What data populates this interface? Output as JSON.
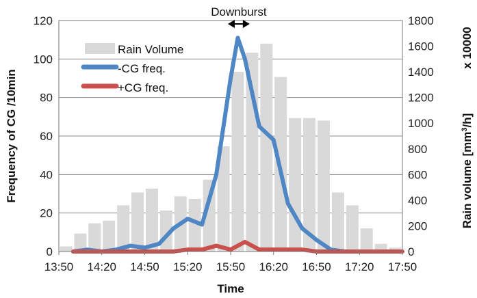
{
  "chart_data": {
    "type": "bar+line",
    "x_ticks": [
      "13:50",
      "14:20",
      "14:50",
      "15:20",
      "15:50",
      "16:20",
      "16:50",
      "17:20",
      "17:50"
    ],
    "x": [
      "13:50",
      "14:00",
      "14:10",
      "14:20",
      "14:30",
      "14:40",
      "14:50",
      "15:00",
      "15:10",
      "15:20",
      "15:30",
      "15:40",
      "15:50",
      "16:00",
      "16:10",
      "16:20",
      "16:30",
      "16:40",
      "16:50",
      "17:00",
      "17:10",
      "17:20",
      "17:30",
      "17:40",
      "17:50"
    ],
    "xlabel": "Time",
    "ylabel_left": "Frequency of CG /10min",
    "ylabel_right": "Rain volume  [mm³/h]",
    "right_multiplier": "x 10000",
    "ylim_left": [
      0,
      120
    ],
    "ylim_right": [
      0,
      1800
    ],
    "left_ticks": [
      "0",
      "20",
      "40",
      "60",
      "80",
      "100",
      "120"
    ],
    "right_ticks": [
      "0",
      "200",
      "400",
      "600",
      "800",
      "1000",
      "1200",
      "1400",
      "1600",
      "1800"
    ],
    "grid": true,
    "legend_position": "top-left",
    "series": [
      {
        "name": "Rain Volume",
        "kind": "bar",
        "axis": "right",
        "color": "#d9d9d9",
        "x": [
          "13:50",
          "14:00",
          "14:10",
          "14:20",
          "14:30",
          "14:40",
          "14:50",
          "15:00",
          "15:10",
          "15:20",
          "15:30",
          "15:40",
          "15:50",
          "16:00",
          "16:10",
          "16:20",
          "16:30",
          "16:40",
          "16:50",
          "17:00",
          "17:10",
          "17:20",
          "17:30",
          "17:40"
        ],
        "values": [
          40,
          140,
          220,
          240,
          360,
          460,
          490,
          320,
          430,
          410,
          560,
          820,
          1400,
          1550,
          1620,
          1360,
          1040,
          1040,
          1020,
          460,
          360,
          180,
          60,
          30
        ]
      },
      {
        "name": "-CG freq.",
        "kind": "line",
        "axis": "left",
        "color": "#4f87c5",
        "x": [
          "14:00",
          "14:10",
          "14:20",
          "14:30",
          "14:40",
          "14:50",
          "15:00",
          "15:10",
          "15:20",
          "15:30",
          "15:40",
          "15:50",
          "15:55",
          "16:00",
          "16:10",
          "16:20",
          "16:30",
          "16:40",
          "16:50",
          "17:00",
          "17:10"
        ],
        "values": [
          0,
          1,
          0,
          1,
          3,
          2,
          4,
          12,
          17,
          14,
          40,
          90,
          111,
          100,
          65,
          58,
          25,
          12,
          6,
          1,
          0
        ]
      },
      {
        "name": "+CG freq.",
        "kind": "line",
        "axis": "left",
        "color": "#c9504d",
        "x": [
          "14:00",
          "14:10",
          "14:20",
          "14:30",
          "14:40",
          "14:50",
          "15:00",
          "15:10",
          "15:20",
          "15:30",
          "15:40",
          "15:50",
          "16:00",
          "16:10",
          "16:20",
          "16:30",
          "16:40",
          "16:50",
          "17:00",
          "17:10",
          "17:20",
          "17:30",
          "17:40",
          "17:50"
        ],
        "values": [
          0,
          0,
          0,
          0,
          0,
          0,
          0,
          0,
          1,
          1,
          3,
          1,
          5,
          1,
          1,
          1,
          1,
          0,
          0,
          0,
          0,
          0,
          0,
          0
        ]
      }
    ],
    "annotations": [
      {
        "text": "Downburst",
        "x_range": [
          "15:50",
          "16:10"
        ]
      }
    ]
  },
  "colors": {
    "rain": "#d9d9d9",
    "neg_cg": "#4f87c5",
    "pos_cg": "#c9504d",
    "grid": "#8a8a8a"
  }
}
